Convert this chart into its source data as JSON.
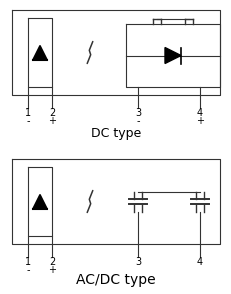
{
  "bg_color": "#ffffff",
  "line_color": "#333333",
  "title1": "DC type",
  "title2": "AC/DC type",
  "figsize": [
    2.32,
    2.94
  ],
  "dpi": 100,
  "labels1": [
    "1",
    "2",
    "3",
    "4"
  ],
  "signs1": [
    "-",
    "+",
    "-",
    "+"
  ],
  "signs2": [
    "-",
    "+",
    "",
    ""
  ],
  "font_size_label": 7,
  "font_size_title": 9
}
